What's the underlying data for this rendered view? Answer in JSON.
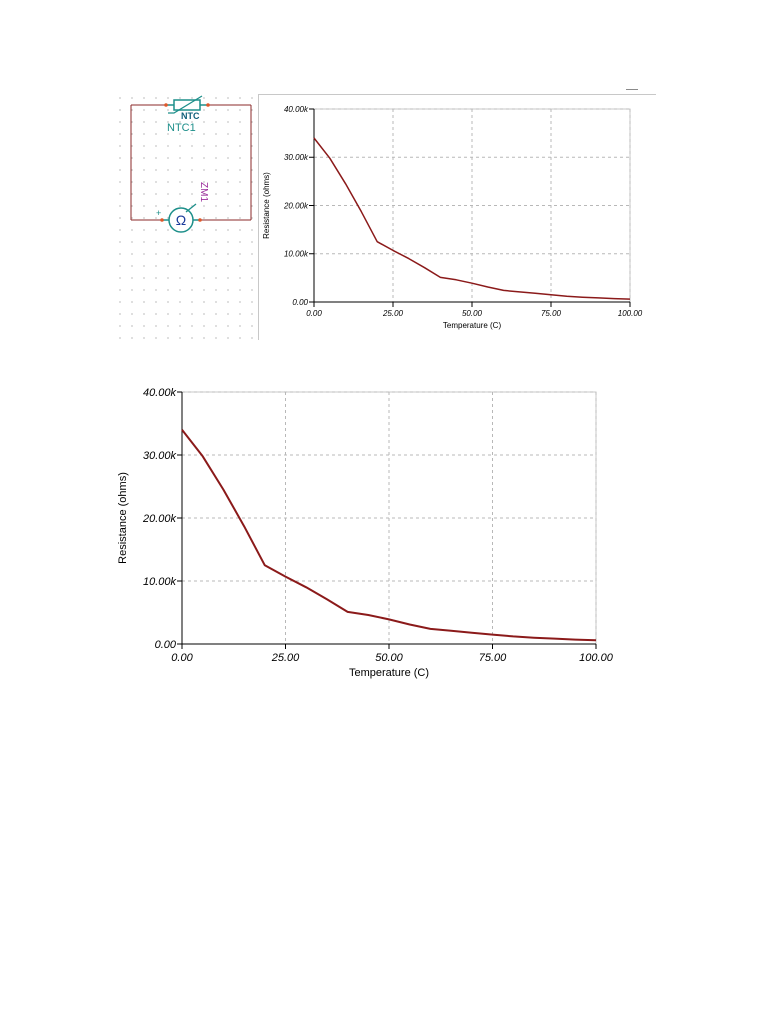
{
  "schematic": {
    "thermistor_tag": "NTC",
    "thermistor_label": "NTC1",
    "meter_symbol": "Ω",
    "meter_label": "ZM1",
    "meter_polarity": "+",
    "wire_color": "#8b2a2a",
    "component_color": "#1d8f8a",
    "meter_label_color": "#9b2d9b"
  },
  "chart_data": [
    {
      "type": "line",
      "title": "",
      "xlabel": "Temperature (C)",
      "ylabel": "Resistance (ohms)",
      "xlim": [
        0,
        100
      ],
      "ylim": [
        0,
        40000
      ],
      "x_ticks": [
        0,
        25,
        50,
        75,
        100
      ],
      "x_tick_labels": [
        "0.00",
        "25.00",
        "50.00",
        "75.00",
        "100.00"
      ],
      "y_ticks": [
        0,
        10000,
        20000,
        30000,
        40000
      ],
      "y_tick_labels": [
        "0.00",
        "10.00k",
        "20.00k",
        "30.00k",
        "40.00k"
      ],
      "grid": true,
      "line_color": "#8b1a1a",
      "x": [
        0,
        5,
        10,
        15,
        20,
        25,
        30,
        35,
        40,
        45,
        50,
        55,
        60,
        65,
        70,
        75,
        80,
        85,
        90,
        95,
        100
      ],
      "values": [
        34000,
        29800,
        24500,
        18700,
        12500,
        10700,
        9000,
        7100,
        5100,
        4600,
        3900,
        3100,
        2400,
        2100,
        1800,
        1500,
        1200,
        1000,
        850,
        700,
        600
      ]
    },
    {
      "type": "line",
      "title": "",
      "xlabel": "Temperature (C)",
      "ylabel": "Resistance (ohms)",
      "xlim": [
        0,
        100
      ],
      "ylim": [
        0,
        40000
      ],
      "x_ticks": [
        0,
        25,
        50,
        75,
        100
      ],
      "x_tick_labels": [
        "0.00",
        "25.00",
        "50.00",
        "75.00",
        "100.00"
      ],
      "y_ticks": [
        0,
        10000,
        20000,
        30000,
        40000
      ],
      "y_tick_labels": [
        "0.00",
        "10.00k",
        "20.00k",
        "30.00k",
        "40.00k"
      ],
      "grid": true,
      "line_color": "#8b1a1a",
      "x": [
        0,
        5,
        10,
        15,
        20,
        25,
        30,
        35,
        40,
        45,
        50,
        55,
        60,
        65,
        70,
        75,
        80,
        85,
        90,
        95,
        100
      ],
      "values": [
        34000,
        29800,
        24500,
        18700,
        12500,
        10700,
        9000,
        7100,
        5100,
        4600,
        3900,
        3100,
        2400,
        2100,
        1800,
        1500,
        1200,
        1000,
        850,
        700,
        600
      ]
    }
  ]
}
